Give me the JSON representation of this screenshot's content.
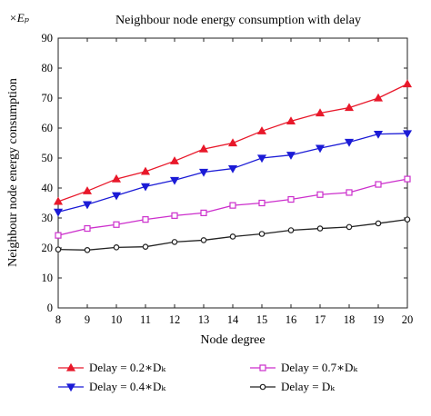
{
  "chart_data": {
    "type": "line",
    "title": "Neighbour node energy consumption with delay",
    "unit_label": "×Eₚ",
    "xlabel": "Node degree",
    "ylabel": "Neighbour node energy consumption",
    "x": [
      8,
      9,
      10,
      11,
      12,
      13,
      14,
      15,
      16,
      17,
      18,
      19,
      20
    ],
    "xlim": [
      8,
      20
    ],
    "ylim": [
      0,
      90
    ],
    "xticks": [
      "8",
      "9",
      "10",
      "11",
      "12",
      "13",
      "14",
      "15",
      "16",
      "17",
      "18",
      "19",
      "20"
    ],
    "yticks": [
      "0",
      "10",
      "20",
      "30",
      "40",
      "50",
      "60",
      "70",
      "80",
      "90"
    ],
    "grid": false,
    "legend_position": "bottom",
    "series": [
      {
        "name": "Delay = 0.2∗Dₖ",
        "color": "#e8182a",
        "marker": "triangle-up",
        "values": [
          35.5,
          39,
          43,
          45.5,
          49,
          53,
          55,
          59,
          62.3,
          65,
          66.8,
          70,
          74.7
        ]
      },
      {
        "name": "Delay = 0.4∗Dₖ",
        "color": "#1b1bd6",
        "marker": "triangle-down",
        "values": [
          32,
          34.5,
          37.5,
          40.5,
          42.6,
          45.3,
          46.5,
          50,
          51,
          53.3,
          55.3,
          58,
          58.2
        ]
      },
      {
        "name": "Delay = 0.7∗Dₖ",
        "color": "#cc2fcc",
        "marker": "square",
        "values": [
          24.2,
          26.5,
          27.8,
          29.5,
          30.8,
          31.7,
          34.2,
          35,
          36.2,
          37.8,
          38.5,
          41.2,
          43
        ]
      },
      {
        "name": "Delay = Dₖ",
        "color": "#222222",
        "marker": "circle",
        "values": [
          19.5,
          19.3,
          20.2,
          20.4,
          22,
          22.6,
          23.8,
          24.7,
          25.9,
          26.5,
          27,
          28.2,
          29.5
        ]
      }
    ]
  }
}
